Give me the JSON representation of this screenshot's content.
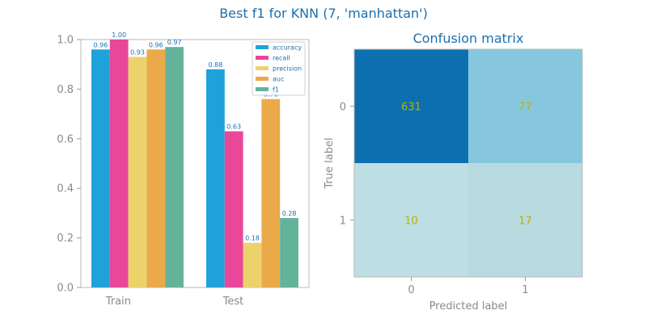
{
  "page_title": "Best f1 for KNN (7, 'manhattan')",
  "colors": {
    "accuracy": "#1ea2d9",
    "recall": "#e8479a",
    "precision": "#ecd26b",
    "auc": "#eaaa4a",
    "f1": "#63b39b",
    "text_accent": "#1a6fb0",
    "axis": "#8a8a8a",
    "cell_text": "#b5b300"
  },
  "chart_data": [
    {
      "type": "bar",
      "title": "",
      "xlabel": "",
      "ylabel": "",
      "categories": [
        "Train",
        "Test"
      ],
      "ylim": [
        0,
        1.0
      ],
      "yticks": [
        "0.0",
        "0.2",
        "0.4",
        "0.6",
        "0.8",
        "1.0"
      ],
      "series": [
        {
          "name": "accuracy",
          "values": [
            0.96,
            0.88
          ],
          "labels": [
            "0.96",
            "0.88"
          ]
        },
        {
          "name": "recall",
          "values": [
            1.0,
            0.63
          ],
          "labels": [
            "1.00",
            "0.63"
          ]
        },
        {
          "name": "precision",
          "values": [
            0.93,
            0.18
          ],
          "labels": [
            "0.93",
            "0.18"
          ]
        },
        {
          "name": "auc",
          "values": [
            0.96,
            0.76
          ],
          "labels": [
            "0.96",
            "0.76"
          ]
        },
        {
          "name": "f1",
          "values": [
            0.97,
            0.28
          ],
          "labels": [
            "0.97",
            "0.28"
          ]
        }
      ],
      "legend": "top-right",
      "grid": false
    },
    {
      "type": "heatmap",
      "title": "Confusion matrix",
      "xlabel": "Predicted label",
      "ylabel": "True label",
      "x_categories": [
        "0",
        "1"
      ],
      "y_categories": [
        "0",
        "1"
      ],
      "values": [
        [
          631,
          77
        ],
        [
          10,
          17
        ]
      ],
      "cell_colors": [
        [
          "#0c6fb0",
          "#86c7dd"
        ],
        [
          "#bddfe4",
          "#b8dbe0"
        ]
      ]
    }
  ]
}
